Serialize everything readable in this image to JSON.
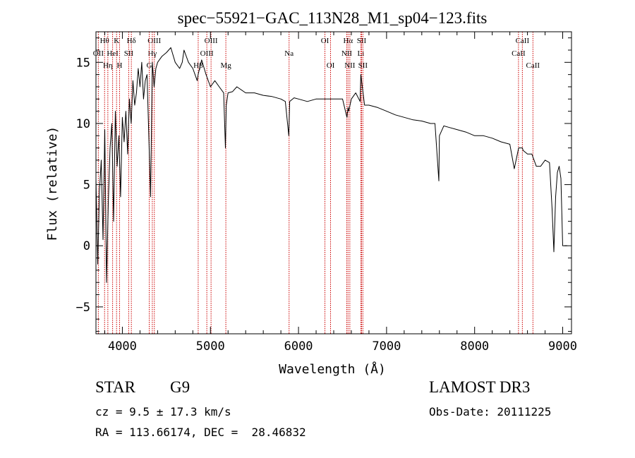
{
  "chart_data": {
    "type": "line",
    "title": "spec−55921−GAC_113N28_M1_sp04−123.fits",
    "xlabel": "Wavelength (Å)",
    "ylabel": "Flux (relative)",
    "xlim": [
      3700,
      9100
    ],
    "ylim": [
      -7.2,
      17.5
    ],
    "x_ticks": [
      4000,
      5000,
      6000,
      7000,
      8000,
      9000
    ],
    "y_ticks": [
      -5,
      0,
      5,
      10,
      15
    ],
    "x_tick_labels": [
      "4000",
      "5000",
      "6000",
      "7000",
      "8000",
      "9000"
    ],
    "y_tick_labels": [
      "−5",
      "0",
      "5",
      "10",
      "15"
    ],
    "series": [
      {
        "name": "flux",
        "color": "#000000",
        "x": [
          3700,
          3720,
          3740,
          3760,
          3780,
          3800,
          3820,
          3840,
          3860,
          3880,
          3900,
          3920,
          3940,
          3960,
          3980,
          4000,
          4020,
          4040,
          4060,
          4080,
          4100,
          4120,
          4140,
          4160,
          4180,
          4200,
          4220,
          4240,
          4260,
          4280,
          4300,
          4320,
          4340,
          4360,
          4380,
          4400,
          4450,
          4500,
          4550,
          4600,
          4650,
          4680,
          4700,
          4750,
          4800,
          4850,
          4860,
          4900,
          4950,
          5000,
          5050,
          5100,
          5150,
          5170,
          5180,
          5200,
          5250,
          5300,
          5400,
          5500,
          5600,
          5700,
          5800,
          5850,
          5890,
          5900,
          5950,
          6000,
          6100,
          6200,
          6300,
          6400,
          6500,
          6550,
          6563,
          6570,
          6600,
          6650,
          6700,
          6708,
          6750,
          6800,
          6900,
          7000,
          7100,
          7200,
          7300,
          7400,
          7500,
          7550,
          7594,
          7600,
          7650,
          7700,
          7800,
          7900,
          8000,
          8100,
          8200,
          8300,
          8400,
          8450,
          8500,
          8542,
          8550,
          8600,
          8650,
          8700,
          8750,
          8800,
          8850,
          8880,
          8900,
          8920,
          8940,
          8960,
          8980,
          9000,
          9050
        ],
        "y": [
          5.5,
          -1.5,
          4.5,
          7.0,
          0.5,
          9.5,
          -3.0,
          3.5,
          8.0,
          10.0,
          2.0,
          11.0,
          6.5,
          9.0,
          4.0,
          10.5,
          8.5,
          11.0,
          7.5,
          12.0,
          10.0,
          13.5,
          11.5,
          12.5,
          14.5,
          13.0,
          15.0,
          12.0,
          13.5,
          14.0,
          9.0,
          4.0,
          15.0,
          13.0,
          14.5,
          15.0,
          15.5,
          15.8,
          16.2,
          15.0,
          14.5,
          15.0,
          16.0,
          15.0,
          14.5,
          13.5,
          14.0,
          15.2,
          14.0,
          13.0,
          13.5,
          13.0,
          12.5,
          8.0,
          11.5,
          12.5,
          12.6,
          13.0,
          12.5,
          12.5,
          12.3,
          12.2,
          12.0,
          11.8,
          9.0,
          11.8,
          12.1,
          12.0,
          11.8,
          12.0,
          12.0,
          12.0,
          12.0,
          10.5,
          11.3,
          11.0,
          12.0,
          12.5,
          11.8,
          14.0,
          11.5,
          11.5,
          11.3,
          11.0,
          10.7,
          10.5,
          10.3,
          10.2,
          10.0,
          10.0,
          5.3,
          9.0,
          9.8,
          9.7,
          9.5,
          9.3,
          9.0,
          9.0,
          8.8,
          8.5,
          8.3,
          6.3,
          8.0,
          8.0,
          7.8,
          7.5,
          7.5,
          6.5,
          6.5,
          7.0,
          6.8,
          3.0,
          -0.5,
          4.0,
          6.0,
          6.5,
          5.5,
          0.0,
          0.0
        ]
      }
    ],
    "line_markers": [
      {
        "label": "Hθ",
        "x": 3798,
        "row": 1
      },
      {
        "label": "OII",
        "x": 3727,
        "row": 2
      },
      {
        "label": "Hη",
        "x": 3835,
        "row": 3
      },
      {
        "label": "HeI",
        "x": 3889,
        "row": 2
      },
      {
        "label": "K",
        "x": 3934,
        "row": 1
      },
      {
        "label": "H",
        "x": 3968,
        "row": 3
      },
      {
        "label": "SII",
        "x": 4072,
        "row": 2
      },
      {
        "label": "Hδ",
        "x": 4102,
        "row": 1
      },
      {
        "label": "OIII",
        "x": 4363,
        "row": 1
      },
      {
        "label": "Hγ",
        "x": 4340,
        "row": 2
      },
      {
        "label": "G",
        "x": 4305,
        "row": 3
      },
      {
        "label": "OIII",
        "x": 5007,
        "row": 1
      },
      {
        "label": "OIII",
        "x": 4959,
        "row": 2
      },
      {
        "label": "Hβ",
        "x": 4861,
        "row": 3
      },
      {
        "label": "Mg",
        "x": 5175,
        "row": 3
      },
      {
        "label": "Na",
        "x": 5893,
        "row": 2
      },
      {
        "label": "OI",
        "x": 6300,
        "row": 1
      },
      {
        "label": "OI",
        "x": 6364,
        "row": 3
      },
      {
        "label": "Hα",
        "x": 6563,
        "row": 1
      },
      {
        "label": "NII",
        "x": 6548,
        "row": 2
      },
      {
        "label": "NII",
        "x": 6583,
        "row": 3
      },
      {
        "label": "SII",
        "x": 6716,
        "row": 1
      },
      {
        "label": "Li",
        "x": 6708,
        "row": 2
      },
      {
        "label": "SII",
        "x": 6731,
        "row": 3
      },
      {
        "label": "CaII",
        "x": 8542,
        "row": 1
      },
      {
        "label": "CaII",
        "x": 8498,
        "row": 2
      },
      {
        "label": "CaII",
        "x": 8662,
        "row": 3
      }
    ]
  },
  "info": {
    "object_class": "STAR",
    "subclass": "G9",
    "redshift": "cz = 9.5 ± 17.3 km/s",
    "coords": "RA = 113.66174, DEC =  28.46832",
    "survey": "LAMOST DR3",
    "obs_date": "Obs-Date: 20111225"
  }
}
